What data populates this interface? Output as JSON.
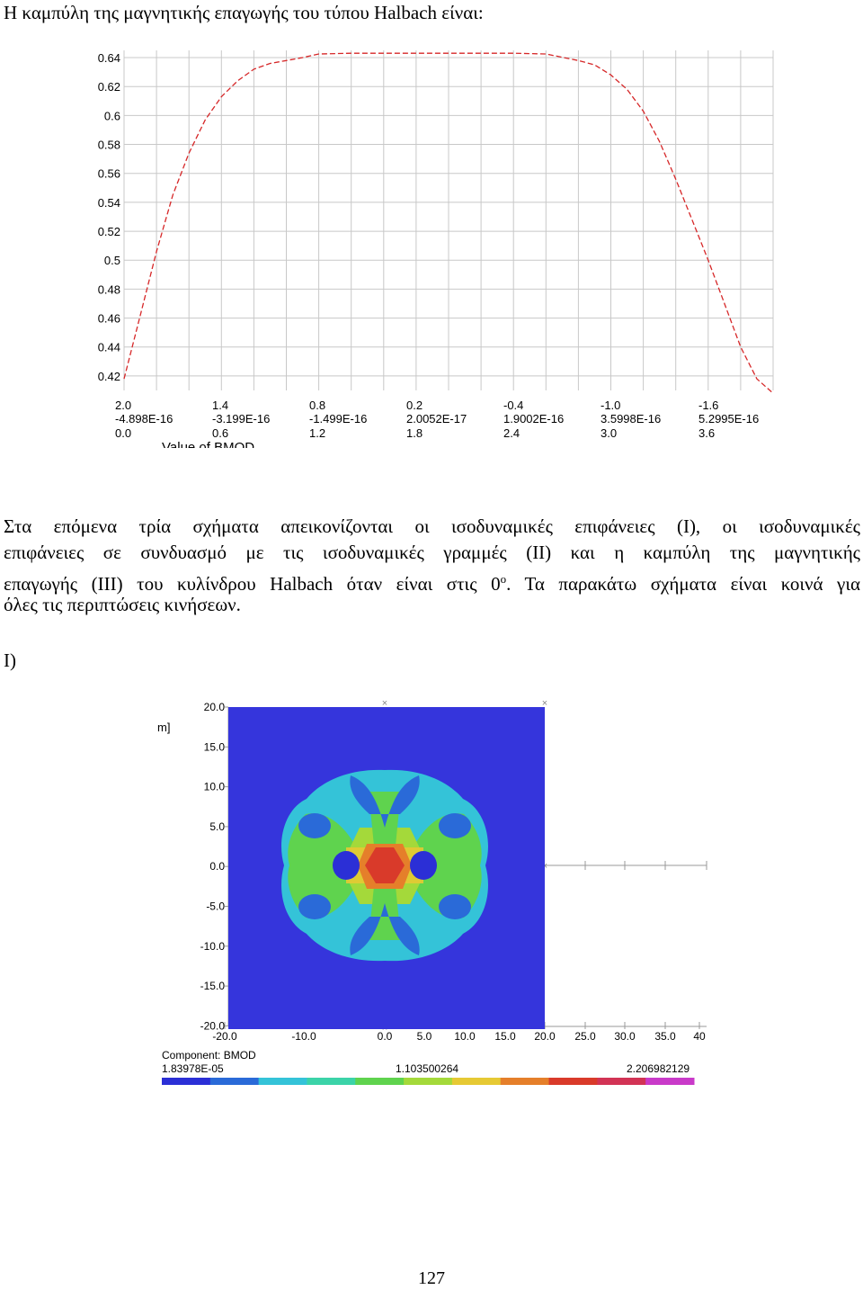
{
  "heading": "Η καμπύλη της μαγνητικής επαγωγής του τύπου Halbach είναι:",
  "paragraph": {
    "lines": [
      "Στα επόμενα τρία σχήματα απεικονίζονται οι ισοδυναμικές επιφάνειες (I), οι ισοδυναμικές",
      "επιφάνειες σε συνδυασμό με τις ισοδυναμικές γραμμές (II) και η καμπύλη της μαγνητικής",
      "επαγωγής (III) του κυλίνδρου Halbach όταν είναι στις 0",
      "όλες τις περιπτώσεις κινήσεων."
    ],
    "superscript": "ο",
    "line3_tail": ". Τα παρακάτω σχήματα είναι κοινά για"
  },
  "figure_label": "I)",
  "page_number": "127",
  "chart_data": [
    {
      "type": "line",
      "ylim": [
        0.41,
        0.645
      ],
      "y_ticks": [
        "0.64",
        "0.62",
        "0.6",
        "0.58",
        "0.56",
        "0.54",
        "0.52",
        "0.5",
        "0.48",
        "0.46",
        "0.44",
        "0.42"
      ],
      "x_tick_rows": [
        [
          "2.0",
          "1.4",
          "0.8",
          "0.2",
          "-0.4",
          "-1.0",
          "-1.6"
        ],
        [
          "-4.898E-16",
          "-3.199E-16",
          "-1.499E-16",
          "2.0052E-17",
          "1.9002E-16",
          "3.5998E-16",
          "5.2995E-16"
        ],
        [
          "0.0",
          "0.6",
          "1.2",
          "1.8",
          "2.4",
          "3.0",
          "3.6"
        ]
      ],
      "xlabel_partial": "Value of BMOD",
      "x": [
        0,
        0.1,
        0.2,
        0.3,
        0.4,
        0.5,
        0.6,
        0.7,
        0.8,
        0.9,
        1.0,
        1.1,
        1.2,
        1.4,
        1.6,
        1.8,
        2.0,
        2.2,
        2.4,
        2.6,
        2.8,
        2.9,
        3.0,
        3.1,
        3.2,
        3.3,
        3.4,
        3.5,
        3.6,
        3.7,
        3.8,
        3.9,
        4.0
      ],
      "series": [
        {
          "style": "dashed",
          "color": "#d62728",
          "values": [
            0.418,
            0.462,
            0.506,
            0.545,
            0.574,
            0.597,
            0.613,
            0.624,
            0.632,
            0.636,
            0.638,
            0.64,
            0.6425,
            0.643,
            0.643,
            0.643,
            0.643,
            0.643,
            0.643,
            0.6425,
            0.638,
            0.635,
            0.628,
            0.618,
            0.603,
            0.582,
            0.556,
            0.528,
            0.5,
            0.47,
            0.44,
            0.418,
            0.408
          ]
        }
      ],
      "grid": true
    },
    {
      "type": "heatmap",
      "component_label": "Component: BMOD",
      "legend_values": [
        "1.83978E-05",
        "1.103500264",
        "2.206982129"
      ],
      "y_ticks": [
        "20.0",
        "15.0",
        "10.0",
        "5.0",
        "0.0",
        "-5.0",
        "-10.0",
        "-15.0",
        "-20.0"
      ],
      "x_ticks": [
        "-20.0",
        "-10.0",
        "0.0",
        "5.0",
        "10.0",
        "15.0",
        "20.0",
        "25.0",
        "30.0",
        "35.0",
        "40"
      ],
      "axis_unit_partial": "m]",
      "xlim": [
        -20,
        40
      ],
      "ylim": [
        -20,
        20
      ],
      "colorbar": [
        "#2b2fd6",
        "#2a6ad8",
        "#34c3d8",
        "#3bd3a8",
        "#5fd34e",
        "#a4d93a",
        "#e6c934",
        "#e57f2a",
        "#d93a2a",
        "#d23355",
        "#c93ac9"
      ]
    }
  ],
  "colors": {
    "field_background": "#3535dc",
    "curve": "#d62728",
    "grid": "#c8c8c8"
  }
}
